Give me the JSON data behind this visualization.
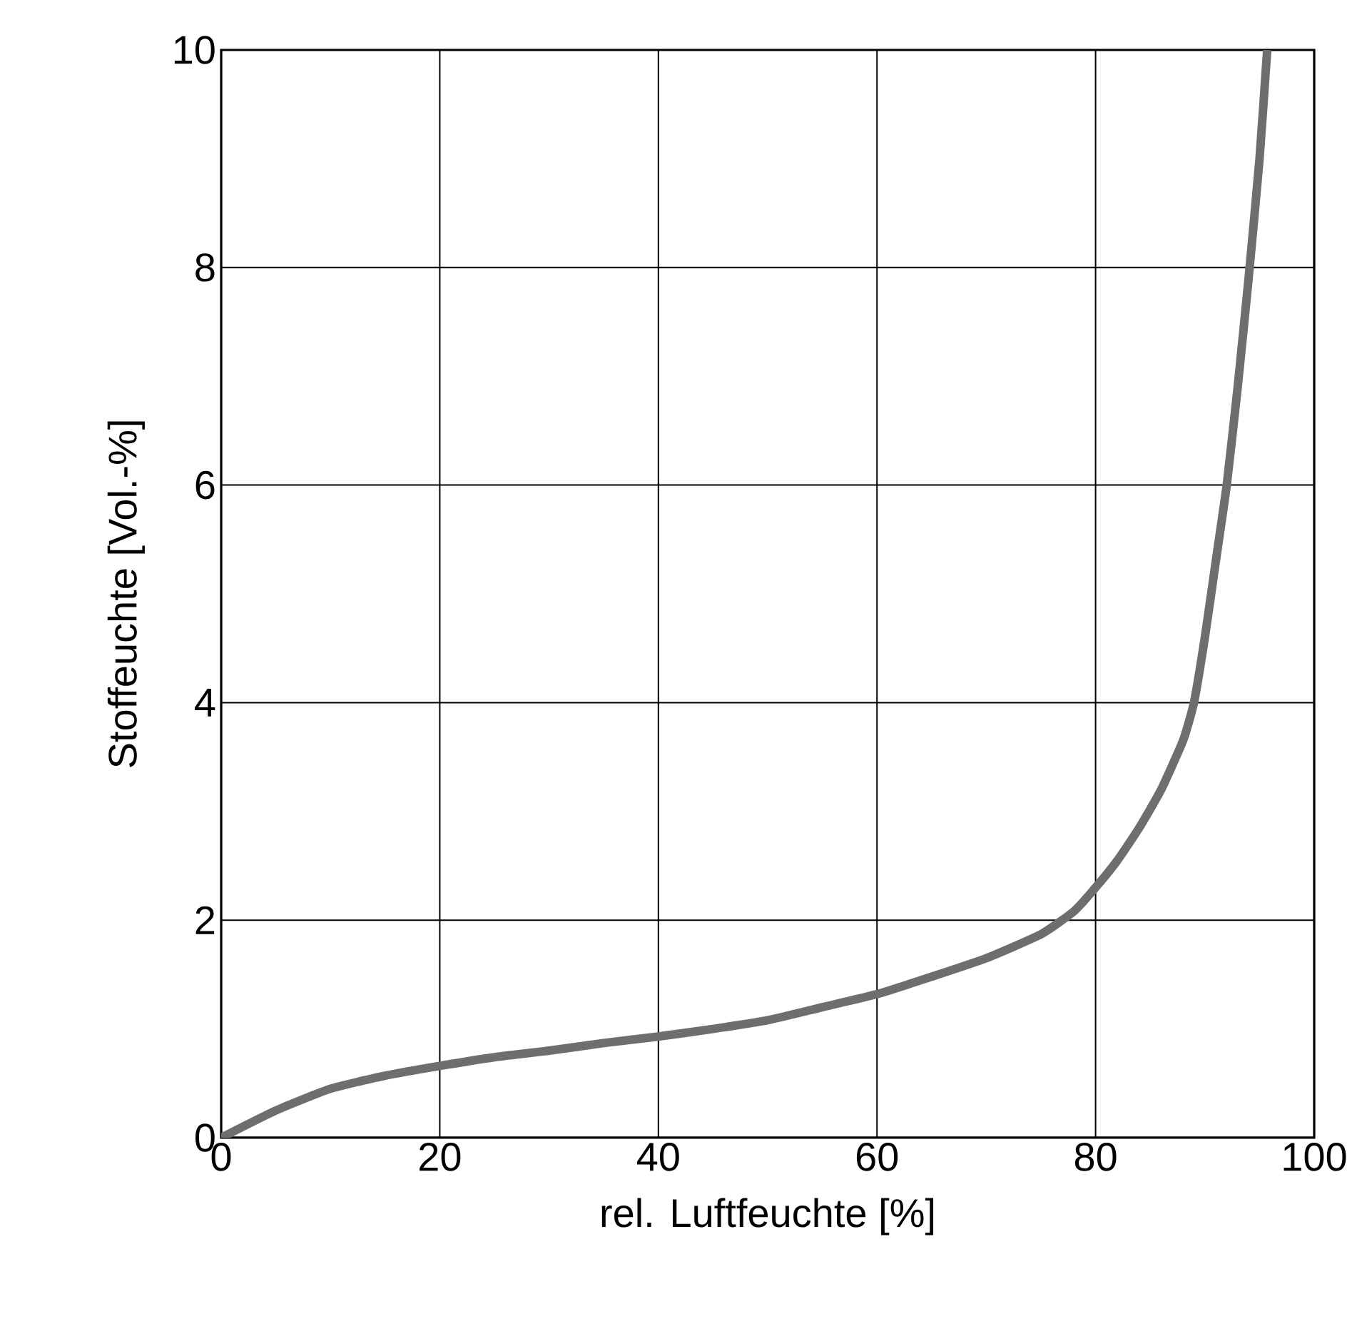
{
  "chart_data": {
    "type": "line",
    "xlabel": "rel. Luftfeuchte [%]",
    "ylabel": "Stoffeuchte [Vol.-%]",
    "xlim": [
      0,
      100
    ],
    "ylim": [
      0,
      10
    ],
    "xticks": [
      0,
      20,
      40,
      60,
      80,
      100
    ],
    "yticks": [
      0,
      2,
      4,
      6,
      8,
      10
    ],
    "grid": true,
    "marker": "none",
    "line_style": "solid",
    "series": [
      {
        "color": "#6e6e6e",
        "x": [
          0,
          5,
          10,
          15,
          20,
          25,
          30,
          35,
          40,
          45,
          50,
          55,
          60,
          65,
          70,
          75,
          78,
          80,
          82,
          84,
          86,
          88,
          89,
          90,
          91,
          92,
          93,
          94,
          95,
          95.7
        ],
        "values": [
          0,
          0.25,
          0.45,
          0.57,
          0.66,
          0.74,
          0.8,
          0.87,
          0.93,
          1.0,
          1.08,
          1.2,
          1.32,
          1.48,
          1.65,
          1.87,
          2.08,
          2.3,
          2.55,
          2.85,
          3.2,
          3.65,
          4.0,
          4.6,
          5.3,
          6.0,
          6.9,
          7.9,
          9.0,
          10
        ]
      }
    ]
  }
}
